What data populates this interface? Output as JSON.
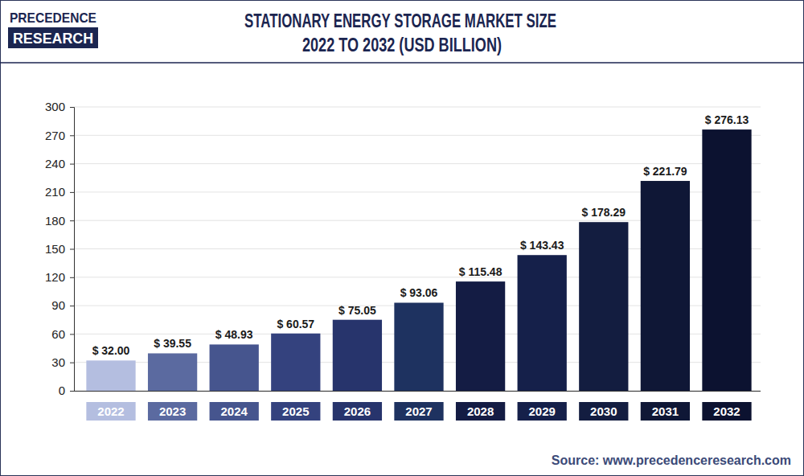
{
  "header": {
    "logo": [
      "PRECEDENCE",
      "RESEARCH"
    ]
  },
  "chart_data": {
    "type": "bar",
    "title": "STATIONARY ENERGY STORAGE MARKET SIZE",
    "subtitle": "2022 TO 2032 (USD BILLION)",
    "categories": [
      "2022",
      "2023",
      "2024",
      "2025",
      "2026",
      "2027",
      "2028",
      "2029",
      "2030",
      "2031",
      "2032"
    ],
    "values": [
      32.0,
      39.55,
      48.93,
      60.57,
      75.05,
      93.06,
      115.48,
      143.43,
      178.29,
      221.79,
      276.13
    ],
    "value_labels": [
      "$ 32.00",
      "$ 39.55",
      "$ 48.93",
      "$ 60.57",
      "$ 75.05",
      "$ 93.06",
      "$ 115.48",
      "$ 143.43",
      "$ 178.29",
      "$ 221.79",
      "$ 276.13"
    ],
    "colors": [
      "#b4bee0",
      "#5b6aa0",
      "#46558e",
      "#34427e",
      "#27346c",
      "#1e3260",
      "#141c44",
      "#15204a",
      "#131d40",
      "#0f1736",
      "#0c1230"
    ],
    "ylim": [
      0,
      300
    ],
    "yticks": [
      0,
      30,
      60,
      90,
      120,
      150,
      180,
      210,
      240,
      270,
      300
    ],
    "grid": true,
    "data_labels": true,
    "annotations": [
      "Source: www.precedenceresearch.com"
    ]
  }
}
